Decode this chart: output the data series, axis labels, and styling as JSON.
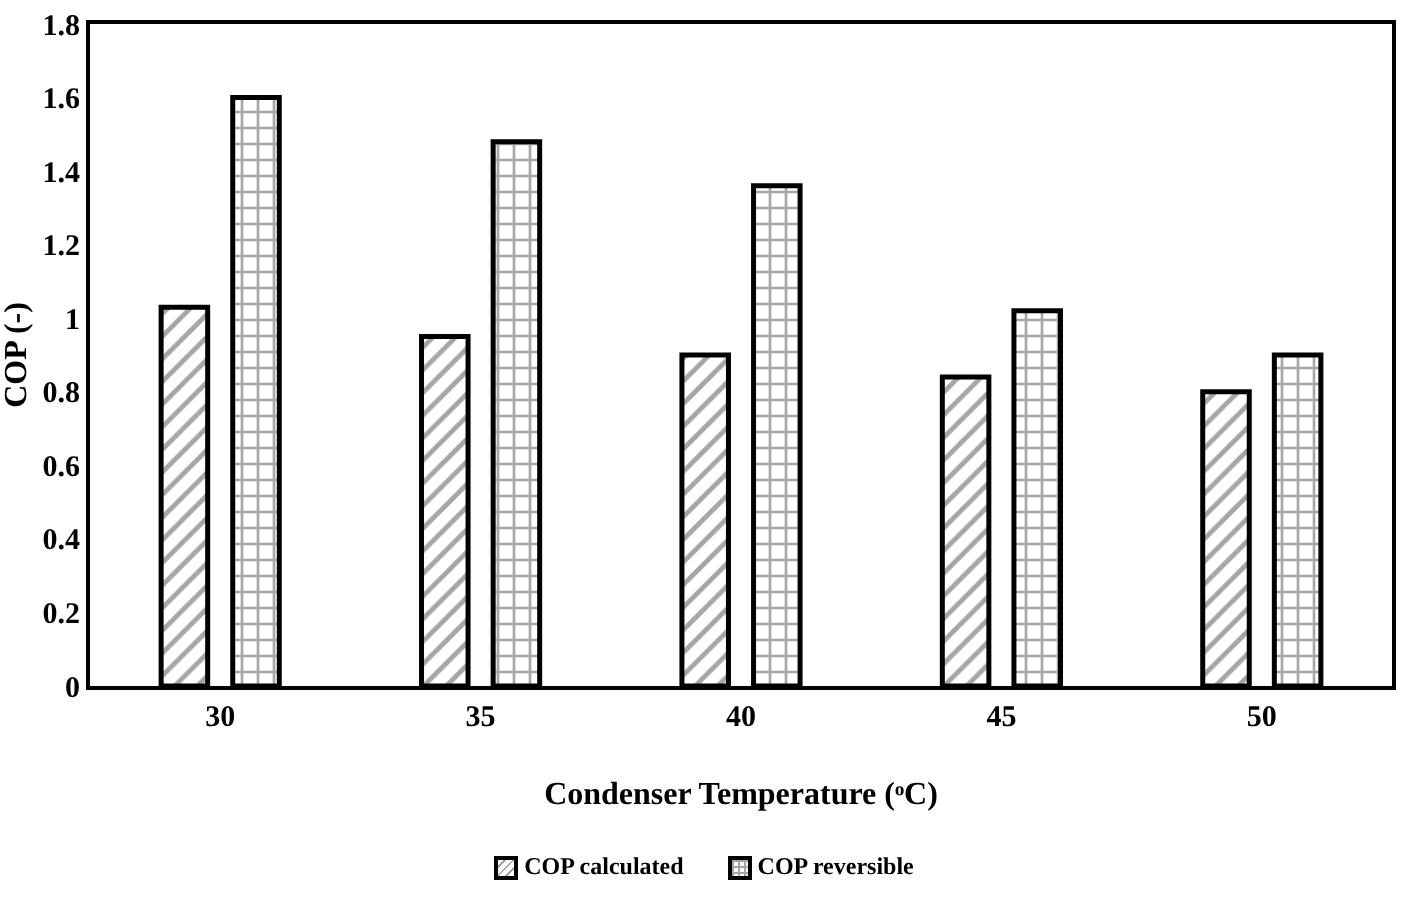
{
  "chart_data": {
    "type": "bar",
    "xlabel": "Condenser Temperature (ᵒC)",
    "ylabel": "COP (-)",
    "categories": [
      "30",
      "35",
      "40",
      "45",
      "50"
    ],
    "series": [
      {
        "name": "COP calculated",
        "color": "#000000",
        "values": [
          1.03,
          0.95,
          0.9,
          0.84,
          0.8
        ]
      },
      {
        "name": "COP reversible",
        "color": "#000000",
        "values": [
          1.6,
          1.48,
          1.36,
          1.02,
          0.9
        ]
      }
    ],
    "ylim": [
      0,
      1.8
    ],
    "yticks": [
      0,
      0.2,
      0.4,
      0.6,
      0.8,
      1,
      1.2,
      1.4,
      1.6,
      1.8
    ],
    "grid": false,
    "legend": "bottom"
  }
}
